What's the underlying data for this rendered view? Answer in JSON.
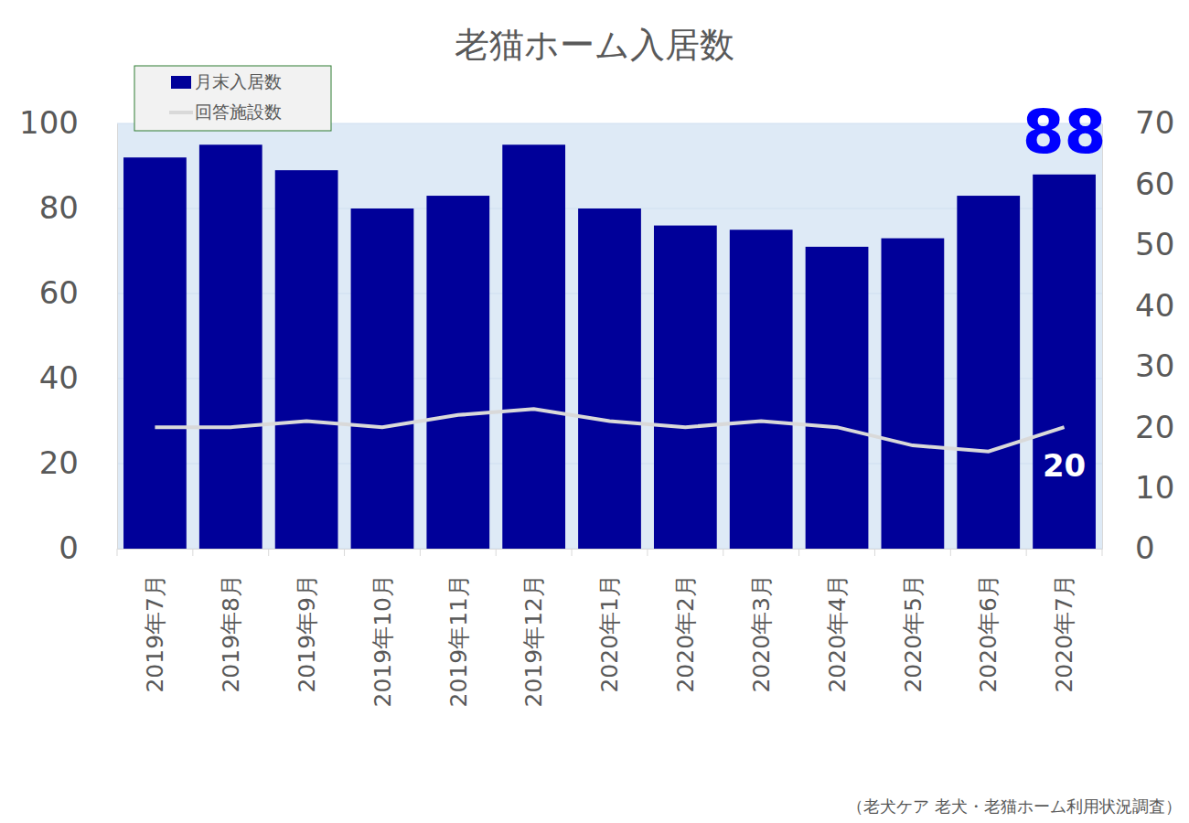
{
  "chart_data": {
    "type": "bar",
    "title": "老猫ホーム入居数",
    "categories": [
      "2019年7月",
      "2019年8月",
      "2019年9月",
      "2019年10月",
      "2019年11月",
      "2019年12月",
      "2020年1月",
      "2020年2月",
      "2020年3月",
      "2020年4月",
      "2020年5月",
      "2020年6月",
      "2020年7月"
    ],
    "series": [
      {
        "name": "月末入居数",
        "type": "bar",
        "color": "#000099",
        "values": [
          92,
          95,
          89,
          80,
          83,
          95,
          80,
          76,
          75,
          71,
          73,
          83,
          88
        ]
      },
      {
        "name": "回答施設数",
        "type": "line",
        "color": "#d9d9d9",
        "axis": "y2",
        "values": [
          20,
          20,
          21,
          20,
          22,
          23,
          21,
          20,
          21,
          20,
          17,
          16,
          20
        ]
      }
    ],
    "ylim": [
      0,
      100
    ],
    "yticks": [
      0,
      20,
      40,
      60,
      80,
      100
    ],
    "y2lim": [
      0,
      70
    ],
    "y2ticks": [
      0,
      10,
      20,
      30,
      40,
      50,
      60,
      70
    ],
    "grid": true,
    "legend": "upper left",
    "annotations": [
      {
        "text": "88",
        "x": "2020年7月",
        "y": 88,
        "color": "#0000ff"
      },
      {
        "text": "20",
        "x": "2020年7月",
        "y": 20,
        "axis": "y2",
        "color": "#ffffff"
      }
    ],
    "source": "（老犬ケア 老犬・老猫ホーム利用状況調査）"
  }
}
